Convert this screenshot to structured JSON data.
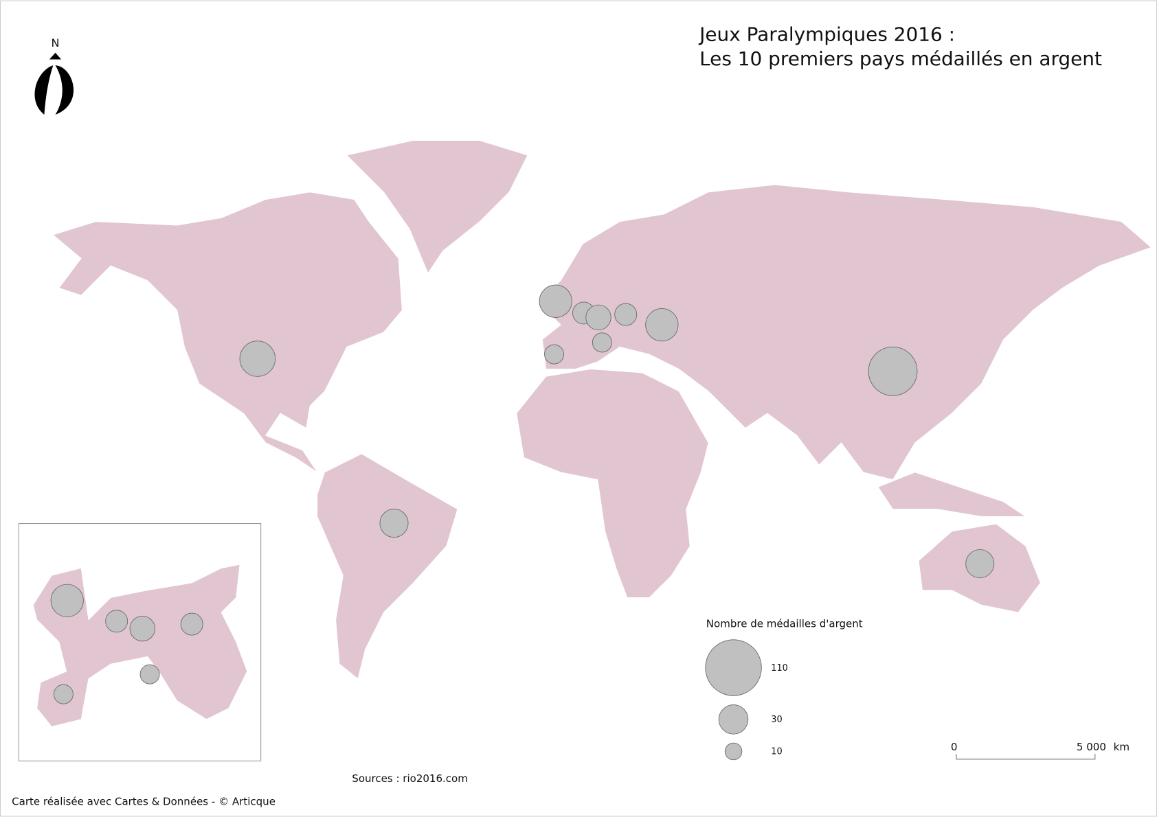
{
  "title": [
    "Jeux Paralympiques 2016 :",
    "Les 10 premiers pays médaillés en argent"
  ],
  "north": "N",
  "legend": {
    "title": "Nombre de médailles d'argent",
    "values": [
      110,
      30,
      10
    ]
  },
  "symbols": {
    "values": [
      44,
      28,
      83,
      28,
      37,
      17,
      22,
      17,
      37,
      13,
      13
    ]
  },
  "scale_bar": {
    "labels": [
      "0",
      "5 000"
    ],
    "unit": "km"
  },
  "sources": "Sources : rio2016.com",
  "credit": "Carte réalisée avec Cartes & Données - © Articque"
}
